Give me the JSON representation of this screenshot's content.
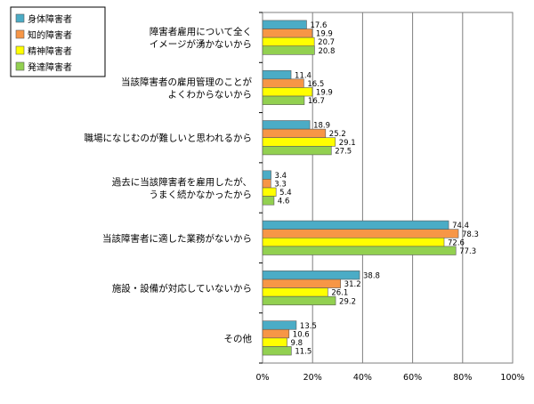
{
  "chart_data": {
    "type": "bar",
    "orientation": "horizontal",
    "categories": [
      [
        "障害者雇用について全く",
        "イメージが湧かないから"
      ],
      [
        "当該障害者の雇用管理のことが",
        "よくわからないから"
      ],
      [
        "職場になじむのが難しいと思われるから"
      ],
      [
        "過去に当該障害者を雇用したが、",
        "うまく続かなかったから"
      ],
      [
        "当該障害者に適した業務がないから"
      ],
      [
        "施設・設備が対応していないから"
      ],
      [
        "その他"
      ]
    ],
    "series": [
      {
        "name": "身体障害者",
        "color": "#4BACC6",
        "values": [
          17.6,
          11.4,
          18.9,
          3.4,
          74.4,
          38.8,
          13.5
        ]
      },
      {
        "name": "知的障害者",
        "color": "#F79646",
        "values": [
          19.9,
          16.5,
          25.2,
          3.3,
          78.3,
          31.2,
          10.6
        ]
      },
      {
        "name": "精神障害者",
        "color": "#FFFF00",
        "values": [
          20.7,
          19.9,
          29.1,
          5.4,
          72.6,
          26.1,
          9.8
        ]
      },
      {
        "name": "発達障害者",
        "color": "#92D050",
        "values": [
          20.8,
          16.7,
          27.5,
          4.6,
          77.3,
          29.2,
          11.5
        ]
      }
    ],
    "xlim": [
      0,
      100
    ],
    "xticks": [
      "0%",
      "20%",
      "40%",
      "60%",
      "80%",
      "100%"
    ],
    "grid": true,
    "legend_position": "top-left",
    "title": "",
    "xlabel": "",
    "ylabel": ""
  }
}
